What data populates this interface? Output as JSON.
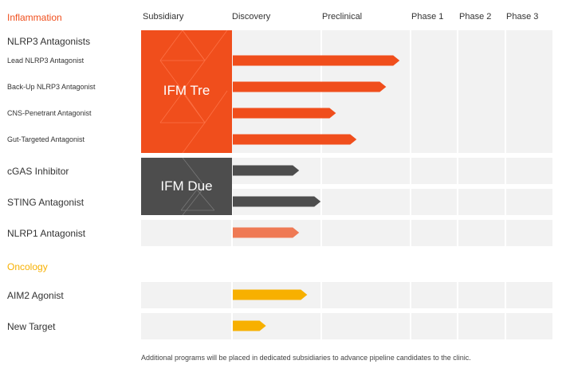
{
  "colors": {
    "inflammation": "#f04e1c",
    "oncology": "#f7b000",
    "dark": "#4d4d4d",
    "nlrp1": "#ef7a55",
    "band": "#f2f2f2"
  },
  "sections": {
    "inflammation": "Inflammation",
    "oncology": "Oncology"
  },
  "columns": [
    "Subsidiary",
    "Discovery",
    "Preclinical",
    "Phase 1",
    "Phase 2",
    "Phase 3"
  ],
  "subsidiaries": {
    "tre": "IFM Tre",
    "due": "IFM Due"
  },
  "footnote": "Additional programs will be placed in dedicated subsidiaries to advance pipeline candidates to the clinic.",
  "chart_data": {
    "type": "bar",
    "orientation": "horizontal",
    "stages": [
      "Discovery",
      "Preclinical",
      "Phase 1",
      "Phase 2",
      "Phase 3"
    ],
    "value_unit": "stage columns completed (0 = start of Discovery)",
    "xlim": [
      0,
      5
    ],
    "groups": [
      {
        "name": "Inflammation",
        "programs": [
          {
            "label": "NLRP3 Antagonists",
            "header": true
          },
          {
            "label": "Lead NLRP3 Antagonist",
            "value": 1.86,
            "color": "inflammation",
            "subsidiary": "IFM Tre"
          },
          {
            "label": "Back-Up NLRP3 Antagonist",
            "value": 1.71,
            "color": "inflammation",
            "subsidiary": "IFM Tre"
          },
          {
            "label": "CNS-Penetrant Antagonist",
            "value": 1.15,
            "color": "inflammation",
            "subsidiary": "IFM Tre"
          },
          {
            "label": "Gut-Targeted Antagonist",
            "value": 1.38,
            "color": "inflammation",
            "subsidiary": "IFM Tre"
          },
          {
            "label": "cGAS Inhibitor",
            "value": 0.74,
            "color": "dark",
            "subsidiary": "IFM Due"
          },
          {
            "label": "STING Antagonist",
            "value": 0.98,
            "color": "dark",
            "subsidiary": "IFM Due"
          },
          {
            "label": "NLRP1 Antagonist",
            "value": 0.74,
            "color": "nlrp1"
          }
        ]
      },
      {
        "name": "Oncology",
        "programs": [
          {
            "label": "AIM2 Agonist",
            "value": 0.83,
            "color": "oncology"
          },
          {
            "label": "New Target",
            "value": 0.37,
            "color": "oncology"
          }
        ]
      }
    ]
  }
}
